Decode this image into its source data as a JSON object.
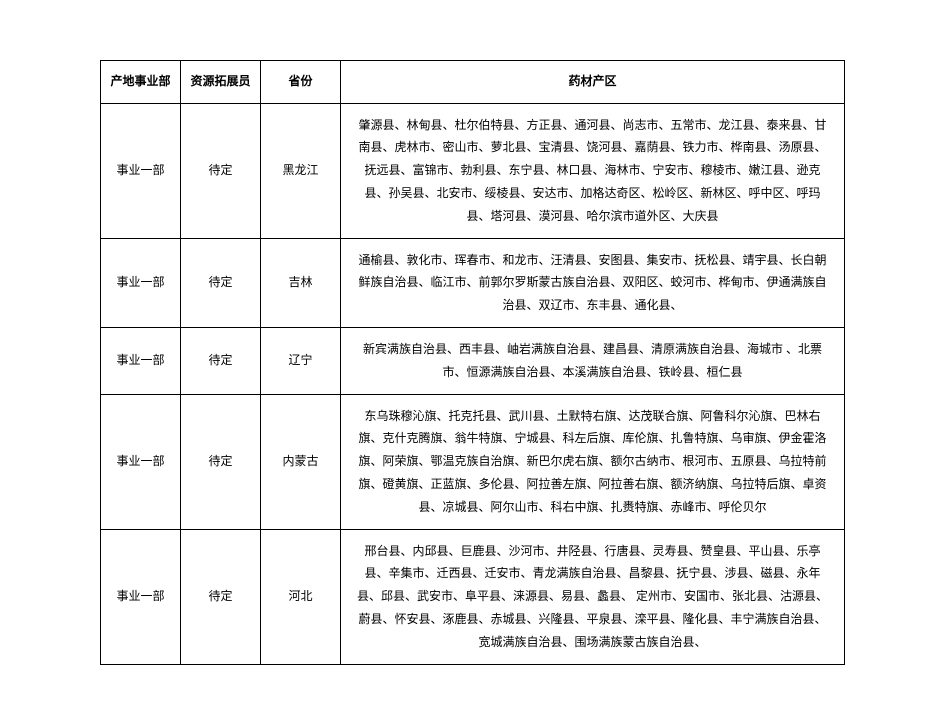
{
  "table": {
    "headers": {
      "dept": "产地事业部",
      "expander": "资源拓展员",
      "province": "省份",
      "regions": "药材产区"
    },
    "rows": [
      {
        "dept": "事业一部",
        "expander": "待定",
        "province": "黑龙江",
        "regions": "肇源县、林甸县、杜尔伯特县、方正县、通河县、尚志市、五常市、龙江县、泰来县、甘南县、虎林市、密山市、萝北县、宝清县、饶河县、嘉荫县、铁力市、桦南县、汤原县、抚远县、富锦市、勃利县、东宁县、林口县、海林市、宁安市、穆棱市、嫩江县、逊克县、孙吴县、北安市、绥棱县、安达市、加格达奇区、松岭区、新林区、呼中区、呼玛县、塔河县、漠河县、哈尔滨市道外区、大庆县"
      },
      {
        "dept": "事业一部",
        "expander": "待定",
        "province": "吉林",
        "regions": "通榆县、敦化市、珲春市、和龙市、汪清县、安图县、集安市、抚松县、靖宇县、长白朝鲜族自治县、临江市、前郭尔罗斯蒙古族自治县、双阳区、蛟河市、桦甸市、伊通满族自治县、双辽市、东丰县、通化县、"
      },
      {
        "dept": "事业一部",
        "expander": "待定",
        "province": "辽宁",
        "regions": "新宾满族自治县、西丰县、岫岩满族自治县、建昌县、清原满族自治县、海城市 、北票市、恒源满族自治县、本溪满族自治县、铁岭县、桓仁县"
      },
      {
        "dept": "事业一部",
        "expander": "待定",
        "province": "内蒙古",
        "regions": "东乌珠穆沁旗、托克托县、武川县、土默特右旗、达茂联合旗、阿鲁科尔沁旗、巴林右旗、克什克腾旗、翁牛特旗、宁城县、科左后旗、库伦旗、扎鲁特旗、乌审旗、伊金霍洛旗、阿荣旗、鄂温克族自治旗、新巴尔虎右旗、额尔古纳市、根河市、五原县、乌拉特前旗、磴黄旗、正蓝旗、多伦县、阿拉善左旗、阿拉善右旗、额济纳旗、乌拉特后旗、卓资县、凉城县、阿尔山市、科右中旗、扎赉特旗、赤峰市、呼伦贝尔"
      },
      {
        "dept": "事业一部",
        "expander": "待定",
        "province": "河北",
        "regions": "邢台县、内邱县、巨鹿县、沙河市、井陉县、行唐县、灵寿县、赞皇县、平山县、乐亭县、辛集市、迁西县、迁安市、青龙满族自治县、昌黎县、抚宁县、涉县、磁县、永年县、邱县、武安市、阜平县、涞源县、易县、蠡县、 定州市、安国市、张北县、沽源县、蔚县、怀安县、涿鹿县、赤城县、兴隆县、平泉县、滦平县、隆化县、丰宁满族自治县、宽城满族自治县、围场满族蒙古族自治县、"
      }
    ],
    "styling": {
      "border_color": "#000000",
      "background_color": "#ffffff",
      "text_color": "#000000",
      "font_size": 12,
      "header_font_weight": "bold",
      "line_height": 1.8,
      "column_widths": {
        "dept": 80,
        "expander": 80,
        "province": 80,
        "regions": "auto"
      }
    }
  }
}
